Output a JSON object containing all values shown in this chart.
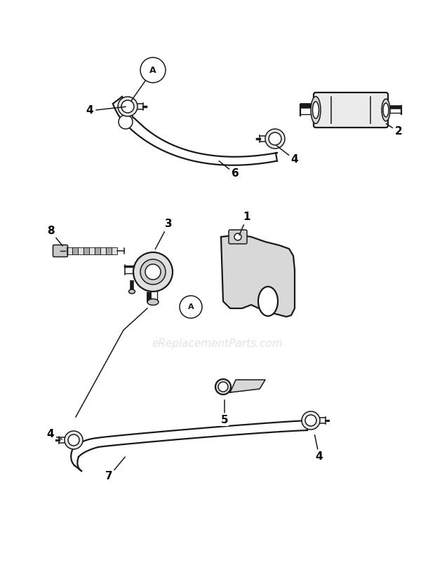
{
  "bg_color": "#ffffff",
  "lc": "#1a1a1a",
  "watermark": "eReplacementParts.com",
  "watermark_color": "#cccccc",
  "figw": 6.2,
  "figh": 8.02,
  "dpi": 100
}
